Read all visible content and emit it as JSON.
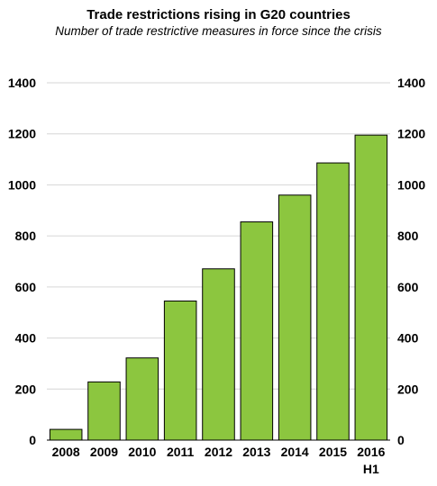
{
  "chart_data": {
    "type": "bar",
    "title": "Trade restrictions rising in G20 countries",
    "subtitle": "Number of trade restrictive measures in force since the crisis",
    "categories": [
      "2008",
      "2009",
      "2010",
      "2011",
      "2012",
      "2013",
      "2014",
      "2015",
      "2016"
    ],
    "category_sublabels": [
      "",
      "",
      "",
      "",
      "",
      "",
      "",
      "",
      "H1"
    ],
    "values": [
      42,
      228,
      322,
      545,
      671,
      855,
      960,
      1086,
      1195
    ],
    "ylim": [
      0,
      1400
    ],
    "yticks": [
      0,
      200,
      400,
      600,
      800,
      1000,
      1200,
      1400
    ],
    "grid": true,
    "dual_y_axis": true,
    "bar_color": "#8cc63f"
  }
}
